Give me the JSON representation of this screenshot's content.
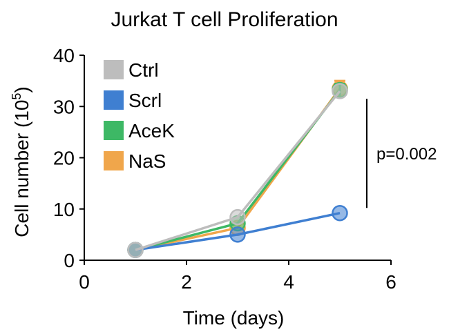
{
  "chart_data": {
    "type": "line",
    "title": "Jurkat T cell Proliferation",
    "xlabel": "Time (days)",
    "ylabel_main": "Cell number (10",
    "ylabel_sup": "5",
    "ylabel_close": ")",
    "xlim": [
      0,
      6
    ],
    "ylim": [
      0,
      40
    ],
    "xticks": [
      0,
      2,
      4,
      6
    ],
    "yticks": [
      0,
      10,
      20,
      30,
      40
    ],
    "grid": false,
    "legend_position": "top-left",
    "series": [
      {
        "name": "NaS",
        "color": "#F0A64B",
        "x": [
          1,
          3,
          5
        ],
        "y": [
          2,
          6.3,
          33.5
        ],
        "err": [
          0,
          0,
          1.5
        ]
      },
      {
        "name": "AceK",
        "color": "#3DB865",
        "x": [
          1,
          3,
          5
        ],
        "y": [
          2,
          7.2,
          33.2
        ],
        "err": [
          0,
          0,
          1.2
        ]
      },
      {
        "name": "Scrl",
        "color": "#3F7FD1",
        "x": [
          1,
          3,
          5
        ],
        "y": [
          2,
          5.0,
          9.2
        ],
        "err": [
          0,
          0,
          0
        ]
      },
      {
        "name": "Ctrl",
        "color": "#BDBDBD",
        "x": [
          1,
          3,
          5
        ],
        "y": [
          2,
          8.4,
          33.0
        ],
        "err": [
          0,
          0,
          0
        ]
      }
    ],
    "legend_order": [
      "Ctrl",
      "Scrl",
      "AceK",
      "NaS"
    ],
    "annotation": {
      "text": "p=0.002",
      "y_from": 10.2,
      "y_to": 31.5
    }
  }
}
